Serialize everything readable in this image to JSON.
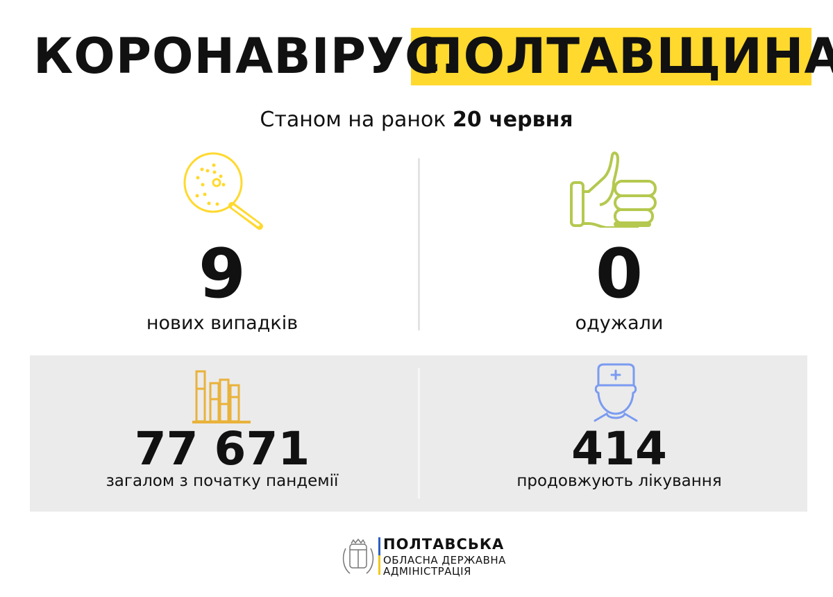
{
  "header": {
    "title_left": "КОРОНАВІРУС.",
    "title_right": "ПОЛТАВЩИНА",
    "subtitle_prefix": "Станом на ранок",
    "subtitle_date": "20 червня"
  },
  "stats": {
    "new_cases": {
      "value": "9",
      "label": "нових випадків",
      "icon": "magnifier-virus-icon",
      "color": "#ffd92e"
    },
    "recovered": {
      "value": "0",
      "label": "одужали",
      "icon": "thumbs-up-icon",
      "color": "#b5c84f"
    },
    "total": {
      "value": "77 671",
      "label": "загалом з початку пандемії",
      "icon": "bar-chart-icon",
      "color": "#e9b23a"
    },
    "treating": {
      "value": "414",
      "label": "продовжують лікування",
      "icon": "doctor-icon",
      "color": "#7b9bf0"
    }
  },
  "footer": {
    "logo_line1": "ПОЛТАВСЬКА",
    "logo_line2": "ОБЛАСНА ДЕРЖАВНА",
    "logo_line3": "АДМІНІСТРАЦІЯ",
    "emblem": "ПОЛТАВЩИНА",
    "flag_colors": [
      "#2d5fc2",
      "#f2c81c"
    ]
  }
}
